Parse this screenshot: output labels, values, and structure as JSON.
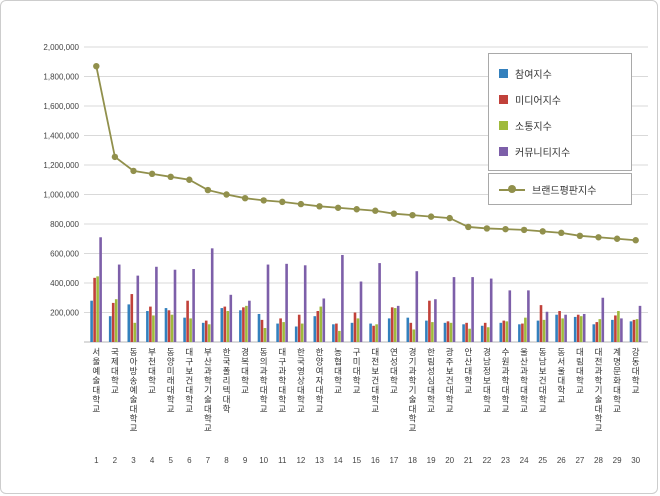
{
  "chart_data": {
    "type": "bar",
    "title": "",
    "categories": [
      "서울예술대학교",
      "국제대학교",
      "동아방송예술대학교",
      "부천대학교",
      "동양미래대학교",
      "대구보건대학교",
      "부산과학기술대학교",
      "한국폴리텍대학",
      "경복대학교",
      "동의과학대학교",
      "대구과학대학교",
      "한국영상대학교",
      "한양여자대학교",
      "농협대학교",
      "구미대학교",
      "대전보건대학교",
      "연성대학교",
      "경기과학기술대학교",
      "한림성심대학교",
      "광주보건대학교",
      "안산대학교",
      "경남정보대학교",
      "수원과학대학교",
      "울산과학대학교",
      "동남보건대학교",
      "동서울대학교",
      "대림대학교",
      "대전과학기술대학교",
      "계명문화대학교",
      "강동대학교"
    ],
    "rank_labels": [
      "1",
      "2",
      "3",
      "4",
      "5",
      "6",
      "7",
      "8",
      "9",
      "10",
      "11",
      "12",
      "13",
      "14",
      "15",
      "16",
      "17",
      "18",
      "19",
      "20",
      "21",
      "22",
      "23",
      "24",
      "25",
      "26",
      "27",
      "28",
      "29",
      "30"
    ],
    "series": [
      {
        "name": "참여지수",
        "kind": "bar",
        "color": "#3380bd",
        "values": [
          280000,
          175000,
          255000,
          210000,
          230000,
          165000,
          130000,
          230000,
          215000,
          190000,
          125000,
          105000,
          175000,
          120000,
          130000,
          125000,
          160000,
          165000,
          145000,
          130000,
          120000,
          110000,
          130000,
          120000,
          145000,
          185000,
          170000,
          120000,
          150000,
          140000
        ]
      },
      {
        "name": "미디어지수",
        "kind": "bar",
        "color": "#c1413a",
        "values": [
          435000,
          265000,
          325000,
          240000,
          215000,
          280000,
          145000,
          240000,
          235000,
          150000,
          160000,
          185000,
          210000,
          125000,
          200000,
          110000,
          235000,
          130000,
          280000,
          140000,
          130000,
          130000,
          145000,
          125000,
          250000,
          210000,
          185000,
          135000,
          180000,
          150000
        ]
      },
      {
        "name": "소통지수",
        "kind": "bar",
        "color": "#9fba3c",
        "values": [
          445000,
          290000,
          130000,
          180000,
          185000,
          160000,
          120000,
          210000,
          245000,
          95000,
          135000,
          125000,
          240000,
          75000,
          160000,
          120000,
          230000,
          85000,
          135000,
          130000,
          90000,
          100000,
          140000,
          165000,
          150000,
          160000,
          175000,
          155000,
          210000,
          155000
        ]
      },
      {
        "name": "커뮤니티지수",
        "kind": "bar",
        "color": "#7d5fa9",
        "values": [
          710000,
          525000,
          450000,
          510000,
          490000,
          495000,
          635000,
          320000,
          280000,
          525000,
          530000,
          520000,
          295000,
          590000,
          410000,
          535000,
          245000,
          480000,
          290000,
          440000,
          440000,
          430000,
          350000,
          350000,
          205000,
          185000,
          190000,
          300000,
          160000,
          245000
        ]
      },
      {
        "name": "브랜드평판지수",
        "kind": "line",
        "color": "#91904c",
        "values": [
          1870000,
          1255000,
          1160000,
          1140000,
          1120000,
          1100000,
          1030000,
          1000000,
          975000,
          960000,
          950000,
          935000,
          920000,
          910000,
          900000,
          890000,
          870000,
          860000,
          850000,
          840000,
          780000,
          770000,
          765000,
          760000,
          750000,
          740000,
          720000,
          710000,
          700000,
          690000
        ]
      }
    ],
    "y_axis": {
      "min": 0,
      "max": 2000000,
      "tick_interval": 200000,
      "tick_labels": [
        "2,000,000",
        "1,800,000",
        "1,600,000",
        "1,400,000",
        "1,200,000",
        "1,000,000",
        "800,000",
        "600,000",
        "400,000",
        "200,000"
      ]
    },
    "grid": true,
    "legend_position": "top-right"
  }
}
